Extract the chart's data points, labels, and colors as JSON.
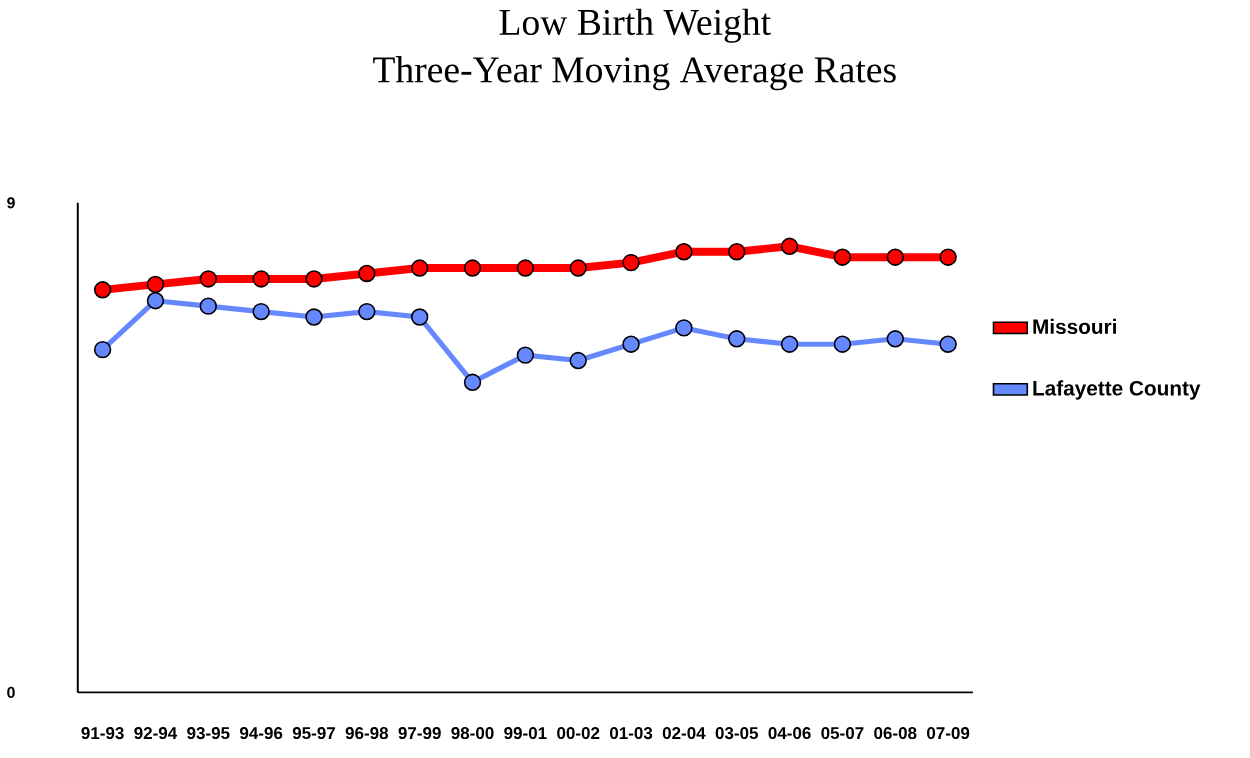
{
  "chart_data": {
    "type": "line",
    "title": "Low Birth Weight",
    "subtitle": "Three-Year Moving Average Rates",
    "categories": [
      "91-93",
      "92-94",
      "93-95",
      "94-96",
      "95-97",
      "96-98",
      "97-99",
      "98-00",
      "99-01",
      "00-02",
      "01-03",
      "02-04",
      "03-05",
      "04-06",
      "05-07",
      "06-08",
      "07-09"
    ],
    "series": [
      {
        "name": "Missouri",
        "color": "#ff0000",
        "values": [
          7.4,
          7.5,
          7.6,
          7.6,
          7.6,
          7.7,
          7.8,
          7.8,
          7.8,
          7.8,
          7.9,
          8.1,
          8.1,
          8.2,
          8.0,
          8.0,
          8.0
        ]
      },
      {
        "name": "Lafayette County",
        "color": "#6688ff",
        "values": [
          6.3,
          7.2,
          7.1,
          7.0,
          6.9,
          7.0,
          6.9,
          5.7,
          6.2,
          6.1,
          6.4,
          6.7,
          6.5,
          6.4,
          6.4,
          6.5,
          6.4
        ]
      }
    ],
    "ylim": [
      0,
      9
    ],
    "yticks": [
      0,
      9
    ],
    "grid": false,
    "legend": "right",
    "marker": "circle",
    "line_style": "solid"
  }
}
